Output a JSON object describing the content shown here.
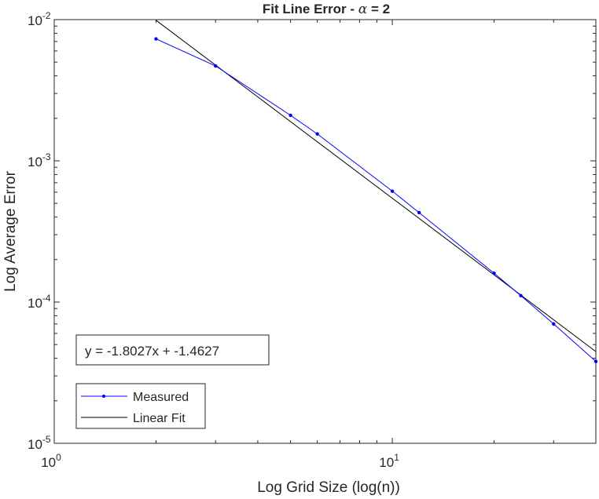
{
  "chart_data": {
    "type": "line",
    "title_prefix": "Fit Line Error - ",
    "title_symbol": "α",
    "title_suffix": " = 2",
    "xlabel": "Log Grid Size (log(n))",
    "ylabel": "Log Average Error",
    "x_scale": "log",
    "y_scale": "log",
    "xlim": [
      1,
      40
    ],
    "ylim": [
      1e-05,
      0.01
    ],
    "x_ticks": [
      {
        "value": 1,
        "base": "10",
        "exp": "0"
      },
      {
        "value": 10,
        "base": "10",
        "exp": "1"
      }
    ],
    "y_ticks": [
      {
        "value": 0.01,
        "base": "10",
        "exp": "-2"
      },
      {
        "value": 0.001,
        "base": "10",
        "exp": "-3"
      },
      {
        "value": 0.0001,
        "base": "10",
        "exp": "-4"
      },
      {
        "value": 1e-05,
        "base": "10",
        "exp": "-5"
      }
    ],
    "grid": false,
    "series": [
      {
        "name": "Measured",
        "color": "#0000ff",
        "marker": "dot",
        "x": [
          2,
          3,
          5,
          6,
          10,
          12,
          20,
          24,
          30,
          40
        ],
        "y": [
          0.0073,
          0.0047,
          0.0021,
          0.00155,
          0.00061,
          0.00043,
          0.00016,
          0.000111,
          7e-05,
          3.8e-05
        ]
      },
      {
        "name": "Linear Fit",
        "color": "#000000",
        "marker": "none",
        "x": [
          2,
          40
        ],
        "y": [
          0.0099,
          4.46e-05
        ]
      }
    ],
    "annotation": "y = -1.8027x + -1.4627",
    "legend_position": "bottom-left"
  }
}
